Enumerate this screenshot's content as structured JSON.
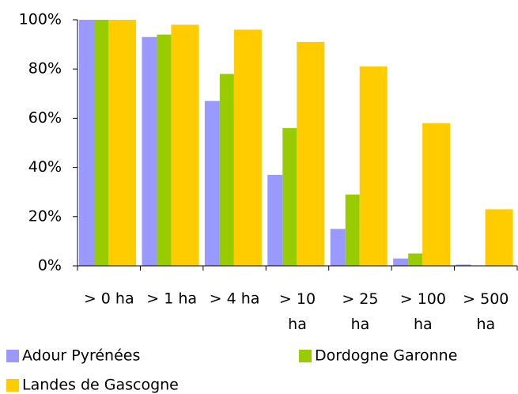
{
  "chart_data": {
    "type": "bar",
    "categories": [
      "> 0 ha",
      "> 1 ha",
      "> 4 ha",
      "> 10 ha",
      "> 25 ha",
      "> 100 ha",
      "> 500 ha"
    ],
    "series": [
      {
        "name": "Adour Pyrénées",
        "color": "#9999ff",
        "values": [
          100,
          93,
          67,
          37,
          15,
          3,
          0.5
        ]
      },
      {
        "name": "Dordogne Garonne",
        "color": "#99cc00",
        "values": [
          100,
          94,
          78,
          56,
          29,
          5,
          0
        ]
      },
      {
        "name": "Landes de Gascogne",
        "color": "#ffcc00",
        "values": [
          100,
          98,
          96,
          91,
          81,
          58,
          23
        ]
      }
    ],
    "ylim": [
      0,
      100
    ],
    "yticks": [
      {
        "value": 0,
        "label": "0%"
      },
      {
        "value": 20,
        "label": "20%"
      },
      {
        "value": 40,
        "label": "40%"
      },
      {
        "value": 60,
        "label": "60%"
      },
      {
        "value": 80,
        "label": "80%"
      },
      {
        "value": 100,
        "label": "100%"
      }
    ],
    "grid": false,
    "legend": "bottom"
  }
}
